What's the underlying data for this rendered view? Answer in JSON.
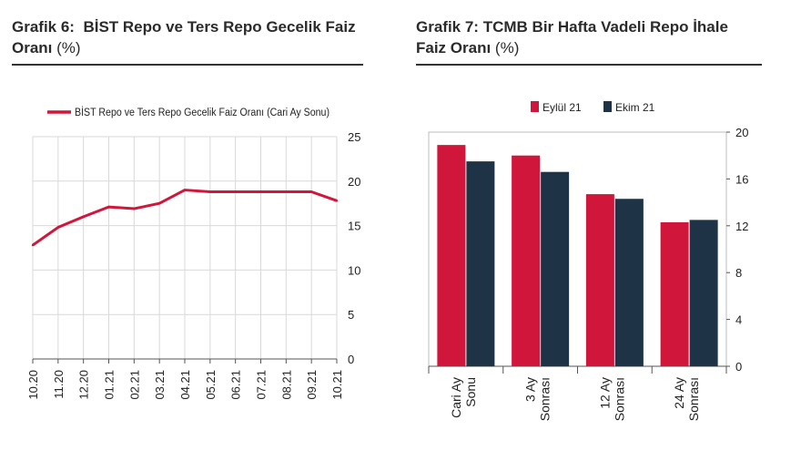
{
  "left": {
    "title_prefix": "Grafik 6:",
    "title": "BİST Repo ve Ters Repo Gecelik Faiz Oranı",
    "title_unit": "(%)"
  },
  "right": {
    "title_prefix": "Grafik 7:",
    "title": "TCMB Bir Hafta Vadeli Repo İhale Faiz Oranı",
    "title_unit": "(%)"
  },
  "colors": {
    "red": "#d0163b",
    "navy": "#1f3347",
    "grid": "#d9d9d9",
    "frame": "#bdbdbd"
  },
  "chart_data": [
    {
      "type": "line",
      "categories": [
        "10.20",
        "11.20",
        "12.20",
        "01.21",
        "02.21",
        "03.21",
        "04.21",
        "05.21",
        "06.21",
        "07.21",
        "08.21",
        "09.21",
        "10.21"
      ],
      "series": [
        {
          "name": "BİST Repo ve Ters Repo Gecelik Faiz Oranı (Cari Ay Sonu)",
          "values": [
            12.8,
            14.8,
            16.0,
            17.1,
            16.9,
            17.5,
            19.0,
            18.8,
            18.8,
            18.8,
            18.8,
            18.8,
            17.8
          ]
        }
      ],
      "yticks": [
        "0",
        "5",
        "10",
        "15",
        "20",
        "25"
      ],
      "ylim": [
        0,
        25
      ],
      "grid": true,
      "legend": "top"
    },
    {
      "type": "bar",
      "categories": [
        "Cari Ay Sonu",
        "3 Ay Sonrası",
        "12 Ay Sonrası",
        "24 Ay Sonrası"
      ],
      "category_lines": [
        [
          "Cari Ay",
          "Sonu"
        ],
        [
          "3 Ay",
          "Sonrası"
        ],
        [
          "12 Ay",
          "Sonrası"
        ],
        [
          "24 Ay",
          "Sonrası"
        ]
      ],
      "series": [
        {
          "name": "Eylül 21",
          "values": [
            18.9,
            18.0,
            14.7,
            12.3
          ]
        },
        {
          "name": "Ekim 21",
          "values": [
            17.5,
            16.6,
            14.3,
            12.5
          ]
        }
      ],
      "yticks": [
        "0",
        "4",
        "8",
        "12",
        "16",
        "20"
      ],
      "ylim": [
        0,
        20
      ],
      "grid": false,
      "legend": "top"
    }
  ]
}
